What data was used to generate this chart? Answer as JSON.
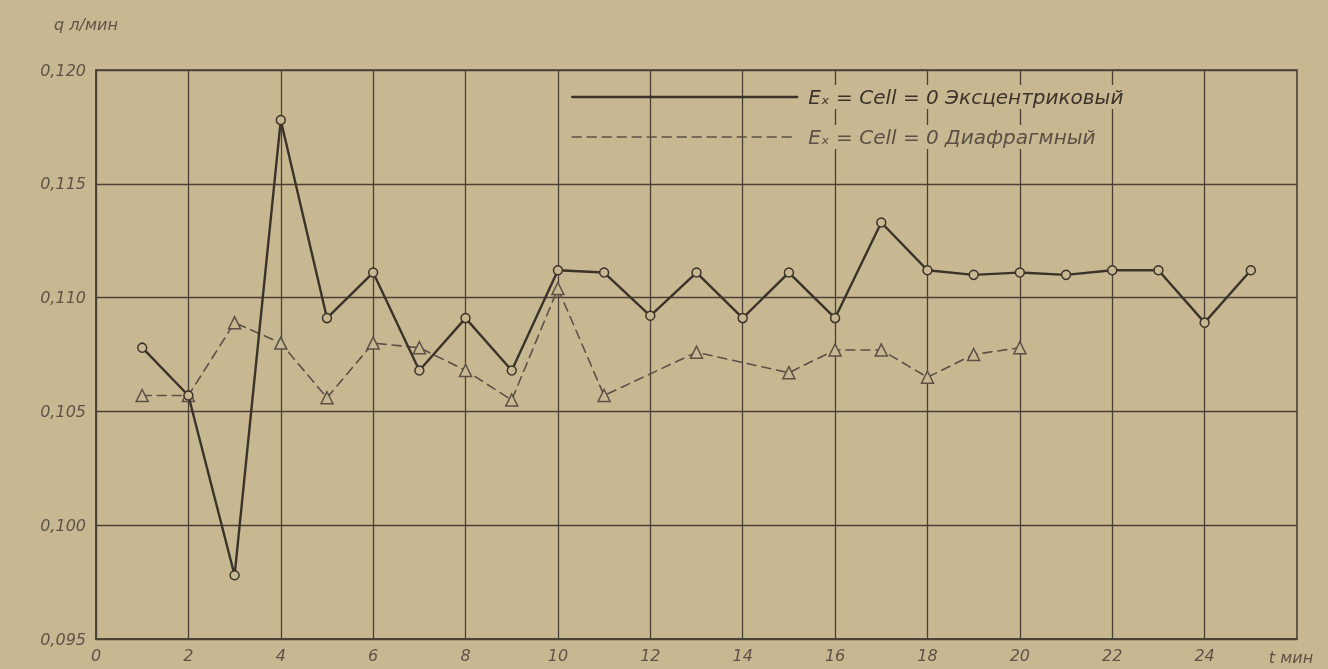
{
  "chart_data": {
    "type": "line",
    "xlabel": "t мин",
    "ylabel": "q л/мин",
    "xlim": [
      0,
      26
    ],
    "xticks": [
      0,
      2,
      4,
      6,
      8,
      10,
      12,
      14,
      16,
      18,
      20,
      22,
      24
    ],
    "ylim": [
      0.095,
      0.12
    ],
    "yticks": [
      {
        "value": 0.095,
        "label": "0,095"
      },
      {
        "value": 0.1,
        "label": "0,100"
      },
      {
        "value": 0.105,
        "label": "0,105"
      },
      {
        "value": 0.11,
        "label": "0,110"
      },
      {
        "value": 0.115,
        "label": "0,115"
      },
      {
        "value": 0.12,
        "label": "0,120"
      }
    ],
    "grid": true,
    "legend": "top right",
    "series": [
      {
        "name": "Eₓ = Cell = 0 Эксцентриковый",
        "color": "#3b332a",
        "marker": "circle",
        "line_style": "solid",
        "x": [
          1,
          2,
          3,
          4,
          5,
          6,
          7,
          8,
          9,
          10,
          11,
          12,
          13,
          14,
          15,
          16,
          17,
          18,
          19,
          20,
          21,
          22,
          23,
          24,
          25
        ],
        "values": [
          0.1078,
          0.1057,
          0.0978,
          0.1178,
          0.1091,
          0.1111,
          0.1068,
          0.1091,
          0.1068,
          0.1112,
          0.1111,
          0.1092,
          0.1111,
          0.1091,
          0.1111,
          0.1091,
          0.1133,
          0.1112,
          0.111,
          0.1111,
          0.111,
          0.1112,
          0.1112,
          0.1089,
          0.1112
        ]
      },
      {
        "name": "Eₓ = Cell = 0 Диафрагмный",
        "color": "#5b5045",
        "marker": "triangle",
        "line_style": "dashed",
        "x": [
          1,
          2,
          3,
          4,
          5,
          6,
          7,
          8,
          9,
          10,
          11,
          13,
          15,
          16,
          17,
          18,
          19,
          20
        ],
        "values": [
          0.1057,
          0.1057,
          0.1089,
          0.108,
          0.1056,
          0.108,
          0.1078,
          0.1068,
          0.1055,
          0.1104,
          0.1057,
          0.1076,
          0.1067,
          0.1077,
          0.1077,
          0.1065,
          0.1075,
          0.1078
        ]
      }
    ]
  }
}
